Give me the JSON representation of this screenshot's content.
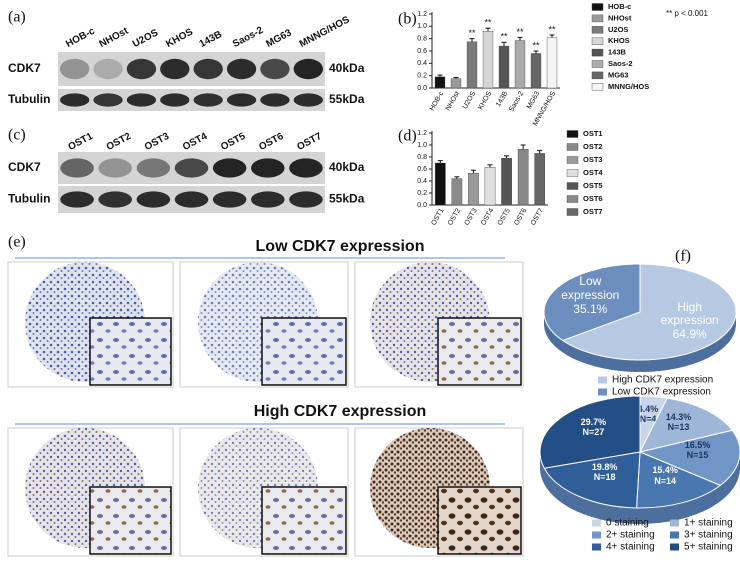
{
  "blots": [
    {
      "label": "(a)",
      "lanes": [
        "HOB-c",
        "NHOst",
        "U2OS",
        "KHOS",
        "143B",
        "Saos-2",
        "MG63",
        "MNNG/HOS"
      ],
      "rows": [
        "CDK7",
        "Tubulin"
      ],
      "sizes": [
        "40kDa",
        "55kDa"
      ]
    },
    {
      "label": "(c)",
      "lanes": [
        "OST1",
        "OST2",
        "OST3",
        "OST4",
        "OST5",
        "OST6",
        "OST7"
      ],
      "rows": [
        "CDK7",
        "Tubulin"
      ],
      "sizes": [
        "40kDa",
        "55kDa"
      ]
    }
  ],
  "histology": {
    "label": "(e)",
    "low_title": "Low CDK7 expression",
    "high_title": "High CDK7 expression"
  },
  "chart_data": [
    {
      "type": "bar",
      "panel": "(b)",
      "categories": [
        "HOB-c",
        "NHOst",
        "U2OS",
        "KHOS",
        "143B",
        "Saos-2",
        "MG63",
        "MNNG/HOS"
      ],
      "values": [
        0.18,
        0.15,
        0.75,
        0.92,
        0.68,
        0.77,
        0.56,
        0.82
      ],
      "errors": [
        0.03,
        0.02,
        0.05,
        0.05,
        0.06,
        0.05,
        0.04,
        0.04
      ],
      "sig_labels": [
        null,
        null,
        "**",
        "**",
        "**",
        "**",
        "**",
        "**"
      ],
      "note": "** p < 0.001",
      "colors": [
        "#111111",
        "#9a9a9a",
        "#7a7a7a",
        "#d6d6d6",
        "#555555",
        "#ababab",
        "#666666",
        "#f4f4f4"
      ],
      "ylim": [
        0,
        1.2
      ],
      "yticks": [
        {
          "value": 0,
          "label": "0.0"
        },
        0.2,
        0.4,
        0.6,
        0.8,
        {
          "value": 1,
          "label": "1.0"
        },
        1.2
      ],
      "legend": true
    },
    {
      "type": "bar",
      "panel": "(d)",
      "categories": [
        "OST1",
        "OST2",
        "OST3",
        "OST4",
        "OST5",
        "OST6",
        "OST7"
      ],
      "values": [
        0.7,
        0.44,
        0.53,
        0.63,
        0.78,
        0.93,
        0.86
      ],
      "errors": [
        0.04,
        0.03,
        0.05,
        0.04,
        0.04,
        0.07,
        0.05
      ],
      "colors": [
        "#111111",
        "#8a8a8a",
        "#9a9a9a",
        "#e0e0e0",
        "#555555",
        "#888888",
        "#666666"
      ],
      "ylim": [
        0,
        1.2
      ],
      "yticks": [
        {
          "value": 0,
          "label": "0.0"
        },
        0.2,
        0.4,
        0.6,
        0.8,
        {
          "value": 1,
          "label": "1.0"
        },
        1.2
      ],
      "legend": true
    },
    {
      "type": "pie",
      "panel": "(f)",
      "categories": [
        "High CDK7 expression",
        "Low CDK7 expression"
      ],
      "slice_labels": [
        "High expression",
        "Low expression"
      ],
      "values": [
        64.9,
        35.1
      ],
      "value_labels": [
        "64.9%",
        "35.1%"
      ],
      "colors": [
        "#b7c9e2",
        "#6d8fbf"
      ]
    },
    {
      "type": "pie",
      "categories": [
        "0 staining",
        "1+ staining",
        "2+ staining",
        "3+ staining",
        "4+ staining",
        "5+ staining"
      ],
      "values": [
        4.4,
        14.3,
        16.5,
        15.4,
        19.8,
        29.7
      ],
      "value_labels": [
        "4.4%",
        "14.3%",
        "16.5%",
        "15.4%",
        "19.8%",
        "29.7%"
      ],
      "count_labels": [
        "N=4",
        "N=13",
        "N=15",
        "N=14",
        "N=18",
        "N=27"
      ],
      "colors": [
        "#c9d6ea",
        "#9fb6d8",
        "#7095c6",
        "#4a77b0",
        "#2f5e98",
        "#234f86"
      ]
    }
  ]
}
